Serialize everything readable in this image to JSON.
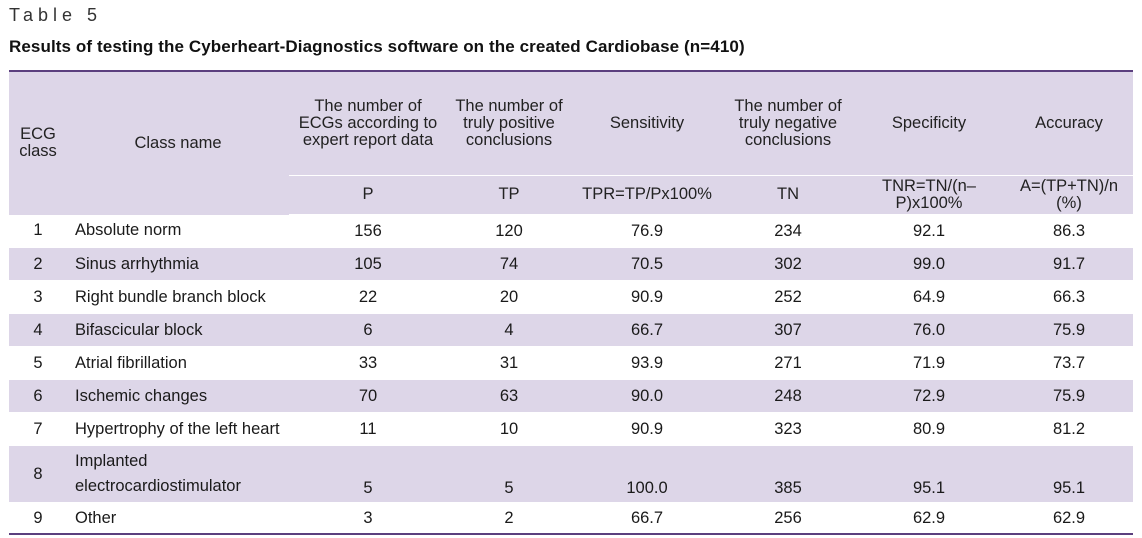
{
  "table_label": "Table 5",
  "caption": "Results of testing the Cyberheart-Diagnostics software on the created Cardiobase (n=410)",
  "headers": {
    "ecg_class": "ECG class",
    "class_name": "Class name",
    "num_ecgs": "The number of ECGs according to expert report data",
    "num_tp": "The number of truly positive conclusions",
    "sensitivity": "Sensitivity",
    "num_tn": "The number of truly negative conclusions",
    "specificity": "Specificity",
    "accuracy": "Accuracy"
  },
  "subheaders": {
    "p": "P",
    "tp": "TP",
    "tpr": "TPR=TP/Px100%",
    "tn": "TN",
    "tnr": "TNR=TN/(n–P)x100%",
    "acc": "A=(TP+TN)/n (%)"
  },
  "rows": [
    {
      "cls": "1",
      "name": "Absolute norm",
      "p": "156",
      "tp": "120",
      "tpr": "76.9",
      "tn": "234",
      "tnr": "92.1",
      "acc": "86.3"
    },
    {
      "cls": "2",
      "name": "Sinus arrhythmia",
      "p": "105",
      "tp": "74",
      "tpr": "70.5",
      "tn": "302",
      "tnr": "99.0",
      "acc": "91.7"
    },
    {
      "cls": "3",
      "name": "Right bundle branch block",
      "p": "22",
      "tp": "20",
      "tpr": "90.9",
      "tn": "252",
      "tnr": "64.9",
      "acc": "66.3"
    },
    {
      "cls": "4",
      "name": "Bifascicular block",
      "p": "6",
      "tp": "4",
      "tpr": "66.7",
      "tn": "307",
      "tnr": "76.0",
      "acc": "75.9"
    },
    {
      "cls": "5",
      "name": "Atrial fibrillation",
      "p": "33",
      "tp": "31",
      "tpr": "93.9",
      "tn": "271",
      "tnr": "71.9",
      "acc": "73.7"
    },
    {
      "cls": "6",
      "name": "Ischemic changes",
      "p": "70",
      "tp": "63",
      "tpr": "90.0",
      "tn": "248",
      "tnr": "72.9",
      "acc": "75.9"
    },
    {
      "cls": "7",
      "name": "Hypertrophy of the left heart",
      "p": "11",
      "tp": "10",
      "tpr": "90.9",
      "tn": "323",
      "tnr": "80.9",
      "acc": "81.2"
    },
    {
      "cls": "8",
      "name": "Implanted electrocardiostimulator",
      "p": "5",
      "tp": "5",
      "tpr": "100.0",
      "tn": "385",
      "tnr": "95.1",
      "acc": "95.1"
    },
    {
      "cls": "9",
      "name": "Other",
      "p": "3",
      "tp": "2",
      "tpr": "66.7",
      "tn": "256",
      "tnr": "62.9",
      "acc": "62.9"
    }
  ],
  "colors": {
    "header_bg": "#ddd6e8",
    "rule": "#5b3f7e"
  }
}
